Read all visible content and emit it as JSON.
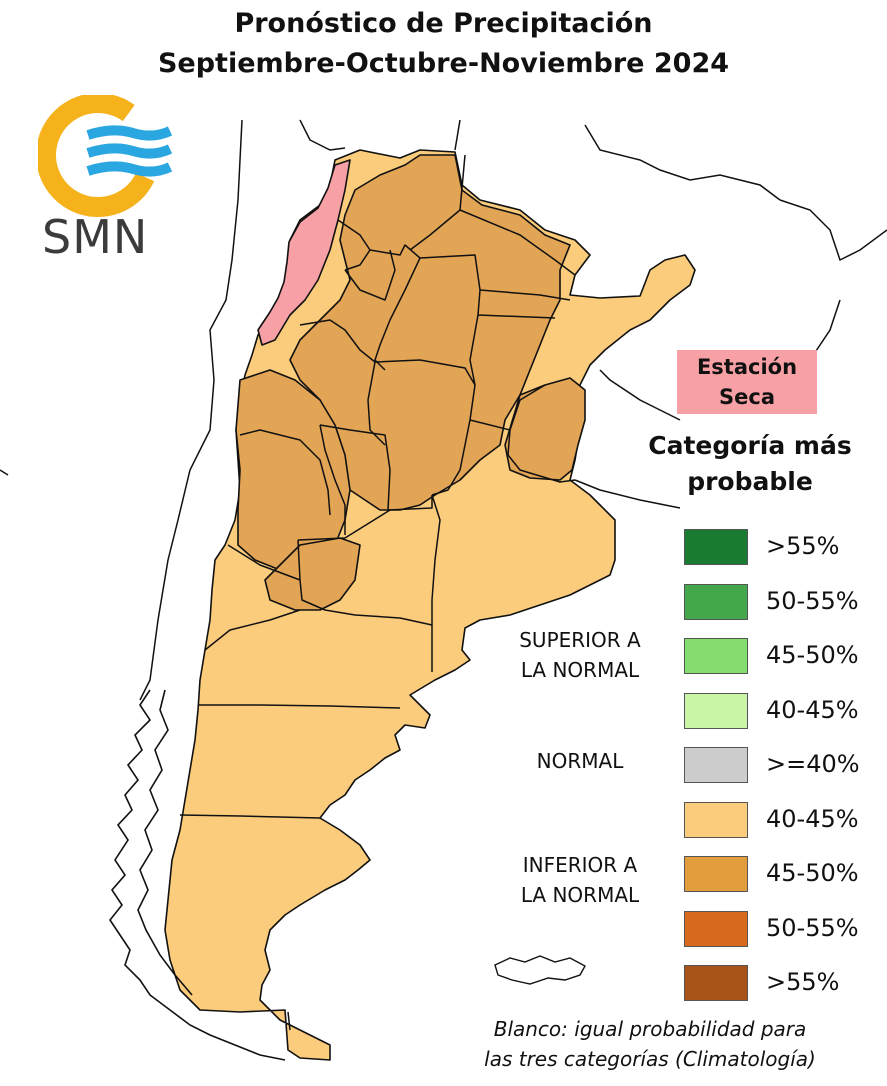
{
  "title": {
    "line1": "Pronóstico de Precipitación",
    "line2": "Septiembre-Octubre-Noviembre 2024"
  },
  "logo": {
    "text": "SMN",
    "icon": "smn-logo-icon"
  },
  "dry_season": {
    "label_line1": "Estación",
    "label_line2": "Seca",
    "color": "#f7a0a6"
  },
  "legend": {
    "title_line1": "Categoría más",
    "title_line2": "probable",
    "groups": {
      "superior_line1": "SUPERIOR A",
      "superior_line2": "LA NORMAL",
      "normal": "NORMAL",
      "inferior_line1": "INFERIOR A",
      "inferior_line2": "LA NORMAL"
    },
    "items": [
      {
        "label": ">55%",
        "color": "#1a7a32"
      },
      {
        "label": "50-55%",
        "color": "#44a74a"
      },
      {
        "label": "45-50%",
        "color": "#84dc6e"
      },
      {
        "label": "40-45%",
        "color": "#c8f5a8"
      },
      {
        "label": ">=40%",
        "color": "#cccccc"
      },
      {
        "label": "40-45%",
        "color": "#fbcc7c"
      },
      {
        "label": "45-50%",
        "color": "#e29e3c"
      },
      {
        "label": "50-55%",
        "color": "#d86a1e"
      },
      {
        "label": ">55%",
        "color": "#a85418"
      }
    ]
  },
  "note": {
    "line1": "Blanco: igual probabilidad para",
    "line2": "las tres categorías (Climatología)"
  },
  "map_colors": {
    "below_40_45": "#fbcc7c",
    "below_45_50": "#e2a455",
    "dry_season": "#f7a0a6",
    "border": "#111111"
  }
}
